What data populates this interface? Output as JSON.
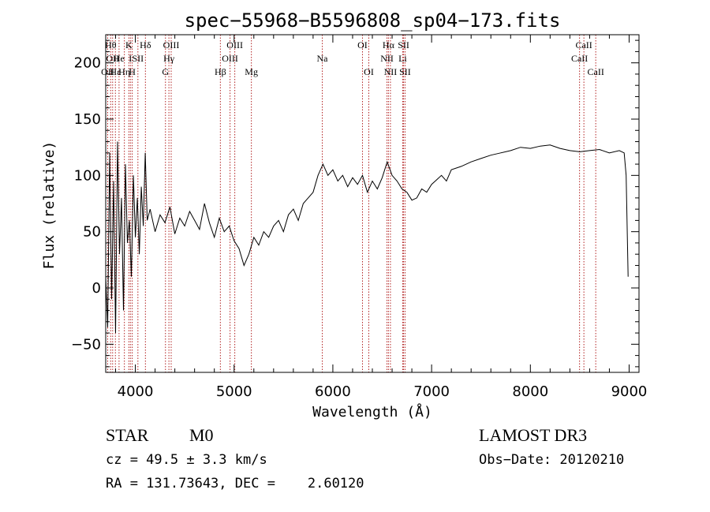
{
  "chart_data": {
    "type": "line",
    "title": "spec−55968−B5596808_sp04−173.fits",
    "xlabel": "Wavelength (Å)",
    "ylabel": "Flux (relative)",
    "xlim": [
      3700,
      9100
    ],
    "ylim": [
      -75,
      225
    ],
    "xticks": [
      4000,
      5000,
      6000,
      7000,
      8000,
      9000
    ],
    "yticks": [
      -50,
      0,
      50,
      100,
      150,
      200
    ],
    "ytick_labels": [
      "−50",
      "0",
      "50",
      "100",
      "150",
      "200"
    ],
    "line_color": "#000000",
    "marker_color": "#b22222",
    "spectrum": {
      "x": [
        3700,
        3720,
        3740,
        3760,
        3780,
        3800,
        3820,
        3840,
        3860,
        3880,
        3900,
        3920,
        3940,
        3960,
        3980,
        4000,
        4020,
        4040,
        4060,
        4080,
        4100,
        4120,
        4150,
        4200,
        4250,
        4300,
        4350,
        4400,
        4450,
        4500,
        4550,
        4600,
        4650,
        4700,
        4750,
        4800,
        4850,
        4900,
        4950,
        5000,
        5050,
        5100,
        5150,
        5200,
        5250,
        5300,
        5350,
        5400,
        5450,
        5500,
        5550,
        5600,
        5650,
        5700,
        5750,
        5800,
        5850,
        5900,
        5950,
        6000,
        6050,
        6100,
        6150,
        6200,
        6250,
        6300,
        6350,
        6400,
        6450,
        6500,
        6550,
        6600,
        6650,
        6700,
        6750,
        6800,
        6850,
        6900,
        6950,
        7000,
        7050,
        7100,
        7150,
        7200,
        7300,
        7400,
        7500,
        7600,
        7700,
        7800,
        7900,
        8000,
        8100,
        8200,
        8300,
        8400,
        8500,
        8600,
        8700,
        8800,
        8900,
        8950,
        8970,
        8990
      ],
      "y": [
        10,
        -35,
        120,
        -10,
        95,
        -40,
        130,
        30,
        80,
        -20,
        110,
        40,
        60,
        10,
        100,
        45,
        80,
        30,
        90,
        55,
        120,
        60,
        70,
        50,
        65,
        58,
        72,
        48,
        62,
        55,
        68,
        60,
        52,
        75,
        58,
        45,
        62,
        50,
        55,
        42,
        35,
        20,
        30,
        45,
        38,
        50,
        45,
        55,
        60,
        50,
        65,
        70,
        60,
        75,
        80,
        85,
        100,
        110,
        100,
        105,
        95,
        100,
        90,
        98,
        92,
        100,
        85,
        95,
        88,
        98,
        112,
        100,
        95,
        88,
        85,
        78,
        80,
        88,
        85,
        92,
        96,
        100,
        95,
        105,
        108,
        112,
        115,
        118,
        120,
        122,
        125,
        124,
        126,
        127,
        124,
        122,
        121,
        122,
        123,
        120,
        122,
        120,
        100,
        10
      ]
    },
    "line_markers": [
      {
        "x": 3720,
        "label": "OΙΙ",
        "row": 3
      },
      {
        "x": 3750,
        "label": "Hθ",
        "row": 1
      },
      {
        "x": 3770,
        "label": "OΙΙ",
        "row": 2
      },
      {
        "x": 3798,
        "label": "Hε",
        "row": 3
      },
      {
        "x": 3835,
        "label": "He",
        "row": 2
      },
      {
        "x": 3889,
        "label": "Hη",
        "row": 3
      },
      {
        "x": 3934,
        "label": "K",
        "row": 1
      },
      {
        "x": 3950,
        "label": "I",
        "row": 2
      },
      {
        "x": 3968,
        "label": "H",
        "row": 3
      },
      {
        "x": 4026,
        "label": "SII",
        "row": 2
      },
      {
        "x": 4102,
        "label": "Hδ",
        "row": 1
      },
      {
        "x": 4340,
        "label": "Hγ",
        "row": 2
      },
      {
        "x": 4363,
        "label": "OIII",
        "row": 1
      },
      {
        "x": 4305,
        "label": "G",
        "row": 3
      },
      {
        "x": 4861,
        "label": "Hβ",
        "row": 3
      },
      {
        "x": 4959,
        "label": "OIII",
        "row": 2
      },
      {
        "x": 5007,
        "label": "OIII",
        "row": 1
      },
      {
        "x": 5175,
        "label": "Mg",
        "row": 3
      },
      {
        "x": 5893,
        "label": "Na",
        "row": 2
      },
      {
        "x": 6300,
        "label": "OI",
        "row": 1
      },
      {
        "x": 6364,
        "label": "OI",
        "row": 3
      },
      {
        "x": 6548,
        "label": "NII",
        "row": 2
      },
      {
        "x": 6563,
        "label": "Hα",
        "row": 1
      },
      {
        "x": 6583,
        "label": "NII",
        "row": 3
      },
      {
        "x": 6707,
        "label": "Li",
        "row": 2
      },
      {
        "x": 6716,
        "label": "SII",
        "row": 1
      },
      {
        "x": 6731,
        "label": "SII",
        "row": 3
      },
      {
        "x": 8498,
        "label": "CaII",
        "row": 2
      },
      {
        "x": 8542,
        "label": "CaII",
        "row": 1
      },
      {
        "x": 8662,
        "label": "CaII",
        "row": 3
      }
    ]
  },
  "info": {
    "object_class": "STAR",
    "subclass": "M0",
    "survey": "LAMOST DR3",
    "redshift_line": "cz = 49.5 ± 3.3 km/s",
    "obs_date_line": "Obs−Date: 20120210",
    "coords_line": "RA = 131.73643, DEC =    2.60120"
  }
}
